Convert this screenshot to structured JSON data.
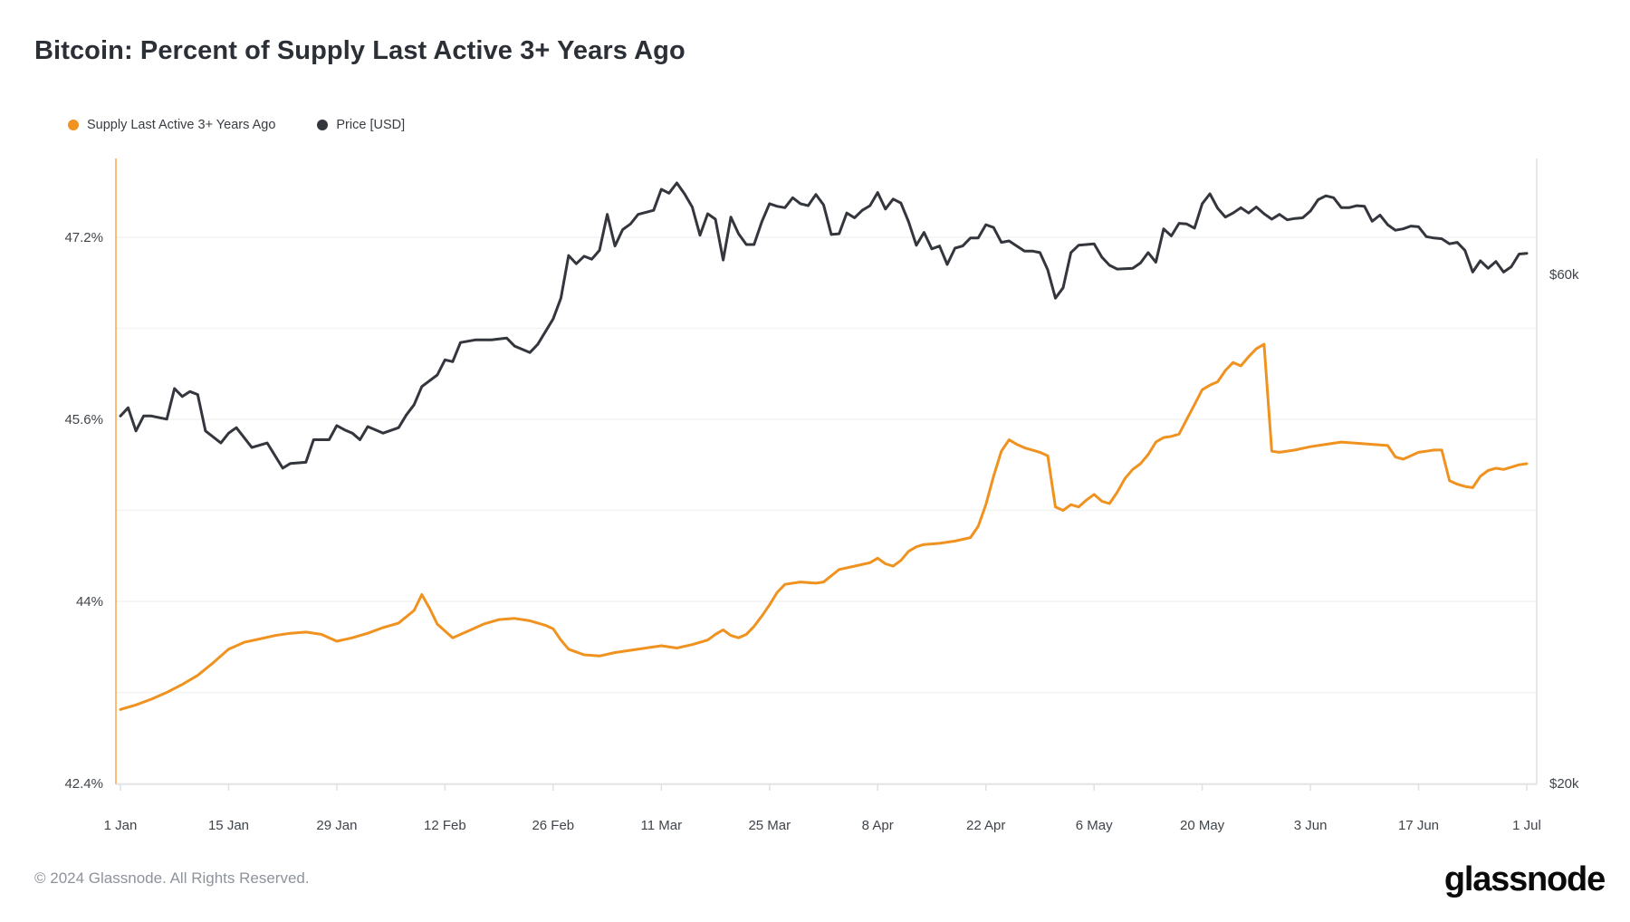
{
  "header": {
    "title": "Bitcoin: Percent of Supply Last Active 3+ Years Ago"
  },
  "legend": [
    {
      "label": "Supply Last Active 3+ Years Ago",
      "color": "#f0921f"
    },
    {
      "label": "Price [USD]",
      "color": "#33363c"
    }
  ],
  "footer": {
    "copyright": "© 2024 Glassnode. All Rights Reserved.",
    "brand": "glassnode"
  },
  "colors": {
    "supply_line": "#f0921f",
    "price_line": "#33363c",
    "grid_line": "#f2f2f3",
    "axis_line": "#dfe1e4",
    "left_axis_line": "#f8bd72",
    "tick_text": "#3f444b"
  },
  "chart_data": {
    "type": "line",
    "title": "Bitcoin: Percent of Supply Last Active 3+ Years Ago",
    "x_axis": {
      "tick_labels": [
        "1 Jan",
        "15 Jan",
        "29 Jan",
        "12 Feb",
        "26 Feb",
        "11 Mar",
        "25 Mar",
        "8 Apr",
        "22 Apr",
        "6 May",
        "20 May",
        "3 Jun",
        "17 Jun",
        "1 Jul"
      ],
      "tick_days": [
        0,
        14,
        28,
        42,
        56,
        70,
        84,
        98,
        112,
        126,
        140,
        154,
        168,
        182
      ],
      "range_days": [
        0,
        182
      ]
    },
    "y_axis_left": {
      "unit": "%",
      "tick_labels": [
        "47.2%",
        "45.6%",
        "44%",
        "42.4%"
      ],
      "tick_values": [
        47.2,
        45.6,
        44,
        42.4
      ],
      "grid_values": [
        47.2,
        46.4,
        45.6,
        44.8,
        44,
        43.2,
        42.4
      ],
      "range": [
        42.4,
        47.2
      ],
      "scale": "linear"
    },
    "y_axis_right": {
      "unit": "USD (thousands)",
      "tick_labels": [
        "$60k",
        "$20k"
      ],
      "tick_values": [
        60,
        20
      ],
      "scale": "log"
    },
    "legend_position": "top-left",
    "grid": true,
    "series": [
      {
        "name": "Supply Last Active 3+ Years Ago",
        "axis": "left",
        "color": "#f0921f",
        "points": [
          [
            0,
            43.05
          ],
          [
            2,
            43.09
          ],
          [
            4,
            43.14
          ],
          [
            6,
            43.2
          ],
          [
            8,
            43.27
          ],
          [
            10,
            43.35
          ],
          [
            12,
            43.46
          ],
          [
            14,
            43.58
          ],
          [
            16,
            43.64
          ],
          [
            18,
            43.67
          ],
          [
            20,
            43.7
          ],
          [
            22,
            43.72
          ],
          [
            24,
            43.73
          ],
          [
            26,
            43.71
          ],
          [
            28,
            43.65
          ],
          [
            30,
            43.68
          ],
          [
            32,
            43.72
          ],
          [
            34,
            43.77
          ],
          [
            36,
            43.81
          ],
          [
            38,
            43.92
          ],
          [
            39,
            44.06
          ],
          [
            40,
            43.94
          ],
          [
            41,
            43.8
          ],
          [
            43,
            43.68
          ],
          [
            45,
            43.74
          ],
          [
            47,
            43.8
          ],
          [
            49,
            43.84
          ],
          [
            51,
            43.85
          ],
          [
            53,
            43.83
          ],
          [
            55,
            43.79
          ],
          [
            56,
            43.76
          ],
          [
            57,
            43.66
          ],
          [
            58,
            43.58
          ],
          [
            60,
            43.53
          ],
          [
            62,
            43.52
          ],
          [
            64,
            43.55
          ],
          [
            66,
            43.57
          ],
          [
            68,
            43.59
          ],
          [
            70,
            43.61
          ],
          [
            72,
            43.59
          ],
          [
            74,
            43.62
          ],
          [
            76,
            43.66
          ],
          [
            77,
            43.71
          ],
          [
            78,
            43.75
          ],
          [
            79,
            43.7
          ],
          [
            80,
            43.68
          ],
          [
            81,
            43.71
          ],
          [
            82,
            43.78
          ],
          [
            83,
            43.87
          ],
          [
            84,
            43.97
          ],
          [
            85,
            44.08
          ],
          [
            86,
            44.15
          ],
          [
            88,
            44.17
          ],
          [
            90,
            44.16
          ],
          [
            91,
            44.17
          ],
          [
            93,
            44.28
          ],
          [
            95,
            44.31
          ],
          [
            97,
            44.34
          ],
          [
            98,
            44.38
          ],
          [
            99,
            44.33
          ],
          [
            100,
            44.31
          ],
          [
            101,
            44.36
          ],
          [
            102,
            44.44
          ],
          [
            103,
            44.48
          ],
          [
            104,
            44.5
          ],
          [
            106,
            44.51
          ],
          [
            108,
            44.53
          ],
          [
            110,
            44.56
          ],
          [
            111,
            44.66
          ],
          [
            112,
            44.85
          ],
          [
            113,
            45.1
          ],
          [
            114,
            45.32
          ],
          [
            115,
            45.42
          ],
          [
            116,
            45.38
          ],
          [
            117,
            45.35
          ],
          [
            118,
            45.33
          ],
          [
            119,
            45.31
          ],
          [
            120,
            45.28
          ],
          [
            121,
            44.83
          ],
          [
            122,
            44.8
          ],
          [
            123,
            44.85
          ],
          [
            124,
            44.83
          ],
          [
            125,
            44.89
          ],
          [
            126,
            44.94
          ],
          [
            127,
            44.88
          ],
          [
            128,
            44.86
          ],
          [
            129,
            44.96
          ],
          [
            130,
            45.08
          ],
          [
            131,
            45.16
          ],
          [
            132,
            45.21
          ],
          [
            133,
            45.29
          ],
          [
            134,
            45.4
          ],
          [
            135,
            45.44
          ],
          [
            136,
            45.45
          ],
          [
            137,
            45.47
          ],
          [
            138,
            45.6
          ],
          [
            139,
            45.73
          ],
          [
            140,
            45.86
          ],
          [
            141,
            45.9
          ],
          [
            142,
            45.93
          ],
          [
            143,
            46.03
          ],
          [
            144,
            46.1
          ],
          [
            145,
            46.07
          ],
          [
            146,
            46.15
          ],
          [
            147,
            46.22
          ],
          [
            148,
            46.26
          ],
          [
            149,
            45.32
          ],
          [
            150,
            45.31
          ],
          [
            152,
            45.33
          ],
          [
            154,
            45.36
          ],
          [
            156,
            45.38
          ],
          [
            158,
            45.4
          ],
          [
            160,
            45.39
          ],
          [
            162,
            45.38
          ],
          [
            164,
            45.37
          ],
          [
            165,
            45.27
          ],
          [
            166,
            45.25
          ],
          [
            167,
            45.28
          ],
          [
            168,
            45.31
          ],
          [
            169,
            45.32
          ],
          [
            170,
            45.33
          ],
          [
            171,
            45.33
          ],
          [
            172,
            45.06
          ],
          [
            173,
            45.03
          ],
          [
            174,
            45.01
          ],
          [
            175,
            45.0
          ],
          [
            176,
            45.1
          ],
          [
            177,
            45.15
          ],
          [
            178,
            45.17
          ],
          [
            179,
            45.16
          ],
          [
            180,
            45.18
          ],
          [
            181,
            45.2
          ],
          [
            182,
            45.21
          ]
        ]
      },
      {
        "name": "Price [USD]",
        "axis": "right",
        "color": "#33363c",
        "points": [
          [
            0,
            44.2
          ],
          [
            1,
            45.0
          ],
          [
            2,
            42.8
          ],
          [
            3,
            44.2
          ],
          [
            4,
            44.2
          ],
          [
            6,
            43.9
          ],
          [
            7,
            46.9
          ],
          [
            8,
            46.1
          ],
          [
            9,
            46.6
          ],
          [
            10,
            46.3
          ],
          [
            11,
            42.8
          ],
          [
            13,
            41.7
          ],
          [
            14,
            42.6
          ],
          [
            15,
            43.1
          ],
          [
            17,
            41.3
          ],
          [
            19,
            41.7
          ],
          [
            21,
            39.5
          ],
          [
            22,
            39.9
          ],
          [
            24,
            40.0
          ],
          [
            25,
            42.0
          ],
          [
            27,
            42.0
          ],
          [
            28,
            43.3
          ],
          [
            29,
            42.9
          ],
          [
            30,
            42.6
          ],
          [
            31,
            42.0
          ],
          [
            32,
            43.2
          ],
          [
            34,
            42.6
          ],
          [
            36,
            43.1
          ],
          [
            37,
            44.3
          ],
          [
            38,
            45.3
          ],
          [
            39,
            47.1
          ],
          [
            41,
            48.3
          ],
          [
            42,
            49.9
          ],
          [
            43,
            49.7
          ],
          [
            44,
            51.8
          ],
          [
            46,
            52.1
          ],
          [
            48,
            52.1
          ],
          [
            50,
            52.3
          ],
          [
            51,
            51.4
          ],
          [
            53,
            50.7
          ],
          [
            54,
            51.6
          ],
          [
            56,
            54.5
          ],
          [
            57,
            57.0
          ],
          [
            58,
            62.5
          ],
          [
            59,
            61.4
          ],
          [
            60,
            62.4
          ],
          [
            61,
            62.0
          ],
          [
            62,
            63.2
          ],
          [
            63,
            68.3
          ],
          [
            64,
            63.8
          ],
          [
            65,
            66.1
          ],
          [
            66,
            66.9
          ],
          [
            67,
            68.3
          ],
          [
            69,
            68.9
          ],
          [
            70,
            72.1
          ],
          [
            71,
            71.5
          ],
          [
            72,
            73.1
          ],
          [
            73,
            71.4
          ],
          [
            74,
            69.4
          ],
          [
            75,
            65.3
          ],
          [
            76,
            68.4
          ],
          [
            77,
            67.6
          ],
          [
            78,
            61.9
          ],
          [
            79,
            67.9
          ],
          [
            80,
            65.5
          ],
          [
            81,
            64.0
          ],
          [
            82,
            64.0
          ],
          [
            83,
            67.2
          ],
          [
            84,
            69.9
          ],
          [
            85,
            69.5
          ],
          [
            86,
            69.3
          ],
          [
            87,
            70.8
          ],
          [
            88,
            69.9
          ],
          [
            89,
            69.6
          ],
          [
            90,
            71.3
          ],
          [
            91,
            69.7
          ],
          [
            92,
            65.4
          ],
          [
            93,
            65.5
          ],
          [
            94,
            68.5
          ],
          [
            95,
            67.8
          ],
          [
            96,
            68.9
          ],
          [
            97,
            69.6
          ],
          [
            98,
            71.6
          ],
          [
            99,
            69.1
          ],
          [
            100,
            70.6
          ],
          [
            101,
            70.0
          ],
          [
            102,
            67.2
          ],
          [
            103,
            63.9
          ],
          [
            104,
            65.7
          ],
          [
            105,
            63.4
          ],
          [
            106,
            63.8
          ],
          [
            107,
            61.3
          ],
          [
            108,
            63.5
          ],
          [
            109,
            63.8
          ],
          [
            110,
            64.9
          ],
          [
            111,
            64.9
          ],
          [
            112,
            66.8
          ],
          [
            113,
            66.4
          ],
          [
            114,
            64.3
          ],
          [
            115,
            64.5
          ],
          [
            116,
            63.8
          ],
          [
            117,
            63.1
          ],
          [
            118,
            63.1
          ],
          [
            119,
            62.9
          ],
          [
            120,
            60.6
          ],
          [
            121,
            57.0
          ],
          [
            122,
            58.3
          ],
          [
            123,
            62.9
          ],
          [
            124,
            63.9
          ],
          [
            126,
            64.1
          ],
          [
            127,
            62.3
          ],
          [
            128,
            61.2
          ],
          [
            129,
            60.7
          ],
          [
            131,
            60.8
          ],
          [
            132,
            61.5
          ],
          [
            133,
            62.9
          ],
          [
            134,
            61.6
          ],
          [
            135,
            66.2
          ],
          [
            136,
            65.2
          ],
          [
            137,
            67.0
          ],
          [
            138,
            66.9
          ],
          [
            139,
            66.3
          ],
          [
            140,
            69.9
          ],
          [
            141,
            71.4
          ],
          [
            142,
            69.2
          ],
          [
            143,
            67.9
          ],
          [
            144,
            68.5
          ],
          [
            145,
            69.3
          ],
          [
            146,
            68.5
          ],
          [
            147,
            69.4
          ],
          [
            148,
            68.4
          ],
          [
            149,
            67.6
          ],
          [
            150,
            68.3
          ],
          [
            151,
            67.5
          ],
          [
            152,
            67.7
          ],
          [
            153,
            67.8
          ],
          [
            154,
            68.8
          ],
          [
            155,
            70.5
          ],
          [
            156,
            71.1
          ],
          [
            157,
            70.8
          ],
          [
            158,
            69.3
          ],
          [
            159,
            69.3
          ],
          [
            160,
            69.6
          ],
          [
            161,
            69.5
          ],
          [
            162,
            67.3
          ],
          [
            163,
            68.2
          ],
          [
            164,
            66.8
          ],
          [
            165,
            66.0
          ],
          [
            166,
            66.2
          ],
          [
            167,
            66.6
          ],
          [
            168,
            66.5
          ],
          [
            169,
            65.1
          ],
          [
            170,
            64.9
          ],
          [
            171,
            64.8
          ],
          [
            172,
            64.1
          ],
          [
            173,
            64.3
          ],
          [
            174,
            63.2
          ],
          [
            175,
            60.3
          ],
          [
            176,
            61.8
          ],
          [
            177,
            60.8
          ],
          [
            178,
            61.7
          ],
          [
            179,
            60.3
          ],
          [
            180,
            61.0
          ],
          [
            181,
            62.7
          ],
          [
            182,
            62.8
          ]
        ]
      }
    ]
  }
}
